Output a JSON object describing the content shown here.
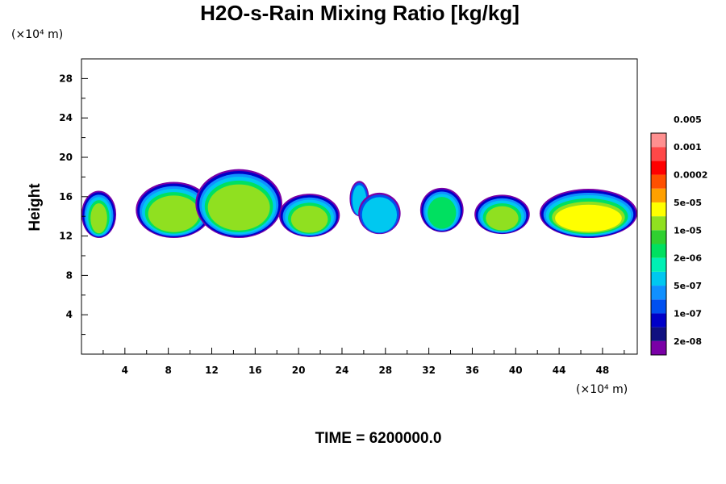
{
  "chart_data": {
    "type": "heatmap",
    "title": "H2O-s-Rain Mixing Ratio [kg/kg]",
    "ylabel": "Height",
    "x_unit_label": "(×10⁴ m)",
    "y_unit_label": "(×10⁴ m)",
    "footer": "TIME = 6200000.0",
    "x_range": [
      0,
      51.2
    ],
    "y_range": [
      0,
      30
    ],
    "x_ticks": [
      "4",
      "8",
      "12",
      "16",
      "20",
      "24",
      "28",
      "32",
      "36",
      "40",
      "44",
      "48"
    ],
    "x_tick_values": [
      4,
      8,
      12,
      16,
      20,
      24,
      28,
      32,
      36,
      40,
      44,
      48
    ],
    "y_ticks": [
      "4",
      "8",
      "12",
      "16",
      "20",
      "24",
      "28"
    ],
    "y_tick_values": [
      4,
      8,
      12,
      16,
      20,
      24,
      28
    ],
    "colorbar": {
      "colors": [
        "#7a00a6",
        "#101080",
        "#0000c8",
        "#0050f0",
        "#1090ff",
        "#00c8f0",
        "#00f0b4",
        "#00e060",
        "#30d030",
        "#90e020",
        "#ffff00",
        "#ffa000",
        "#ff5000",
        "#ff0000",
        "#ff4848",
        "#ff9090"
      ],
      "labels": [
        "2e-08",
        "1e-07",
        "5e-07",
        "2e-06",
        "1e-05",
        "5e-05",
        "0.0002",
        "0.001",
        "0.005"
      ]
    },
    "cells": [
      {
        "x0": 0.0,
        "x1": 3.2,
        "y0": 11.8,
        "y1": 16.6,
        "levels": [
          {
            "t": 0,
            "c": 0
          },
          {
            "t": 0.2,
            "c": 2
          },
          {
            "t": 0.5,
            "c": 4
          },
          {
            "t": 0.8,
            "c": 5
          },
          {
            "t": 1.2,
            "c": 7
          },
          {
            "t": 1.6,
            "c": 9
          }
        ]
      },
      {
        "x0": 5.0,
        "x1": 12.0,
        "y0": 11.8,
        "y1": 17.5,
        "levels": [
          {
            "t": 0,
            "c": 0
          },
          {
            "t": 0.2,
            "c": 2
          },
          {
            "t": 0.5,
            "c": 4
          },
          {
            "t": 0.8,
            "c": 5
          },
          {
            "t": 1.2,
            "c": 7
          },
          {
            "t": 1.6,
            "c": 9
          }
        ]
      },
      {
        "x0": 10.5,
        "x1": 18.5,
        "y0": 11.8,
        "y1": 18.8,
        "levels": [
          {
            "t": 0,
            "c": 0
          },
          {
            "t": 0.2,
            "c": 2
          },
          {
            "t": 0.5,
            "c": 4
          },
          {
            "t": 0.8,
            "c": 5
          },
          {
            "t": 1.2,
            "c": 7
          },
          {
            "t": 1.6,
            "c": 9
          }
        ]
      },
      {
        "x0": 18.2,
        "x1": 23.8,
        "y0": 11.9,
        "y1": 16.3,
        "levels": [
          {
            "t": 0,
            "c": 0
          },
          {
            "t": 0.2,
            "c": 2
          },
          {
            "t": 0.5,
            "c": 4
          },
          {
            "t": 0.8,
            "c": 5
          },
          {
            "t": 1.2,
            "c": 7
          },
          {
            "t": 1.6,
            "c": 9
          }
        ]
      },
      {
        "x0": 24.7,
        "x1": 26.5,
        "y0": 14.0,
        "y1": 17.6,
        "levels": [
          {
            "t": 0,
            "c": 0
          },
          {
            "t": 0.25,
            "c": 3
          },
          {
            "t": 0.6,
            "c": 5
          }
        ]
      },
      {
        "x0": 25.5,
        "x1": 29.4,
        "y0": 12.2,
        "y1": 16.4,
        "levels": [
          {
            "t": 0,
            "c": 0
          },
          {
            "t": 0.25,
            "c": 3
          },
          {
            "t": 0.6,
            "c": 5
          }
        ]
      },
      {
        "x0": 31.2,
        "x1": 35.2,
        "y0": 12.4,
        "y1": 16.9,
        "levels": [
          {
            "t": 0,
            "c": 0
          },
          {
            "t": 0.2,
            "c": 2
          },
          {
            "t": 0.5,
            "c": 4
          },
          {
            "t": 0.8,
            "c": 5
          },
          {
            "t": 1.2,
            "c": 7
          }
        ]
      },
      {
        "x0": 36.2,
        "x1": 41.3,
        "y0": 12.2,
        "y1": 16.2,
        "levels": [
          {
            "t": 0,
            "c": 0
          },
          {
            "t": 0.2,
            "c": 2
          },
          {
            "t": 0.5,
            "c": 4
          },
          {
            "t": 0.8,
            "c": 5
          },
          {
            "t": 1.2,
            "c": 7
          },
          {
            "t": 1.6,
            "c": 9
          }
        ]
      },
      {
        "x0": 42.2,
        "x1": 51.2,
        "y0": 11.8,
        "y1": 16.8,
        "levels": [
          {
            "t": 0,
            "c": 0
          },
          {
            "t": 0.2,
            "c": 2
          },
          {
            "t": 0.5,
            "c": 4
          },
          {
            "t": 0.8,
            "c": 5
          },
          {
            "t": 1.2,
            "c": 7
          },
          {
            "t": 1.6,
            "c": 9
          },
          {
            "t": 2.0,
            "c": 10
          }
        ]
      }
    ]
  }
}
